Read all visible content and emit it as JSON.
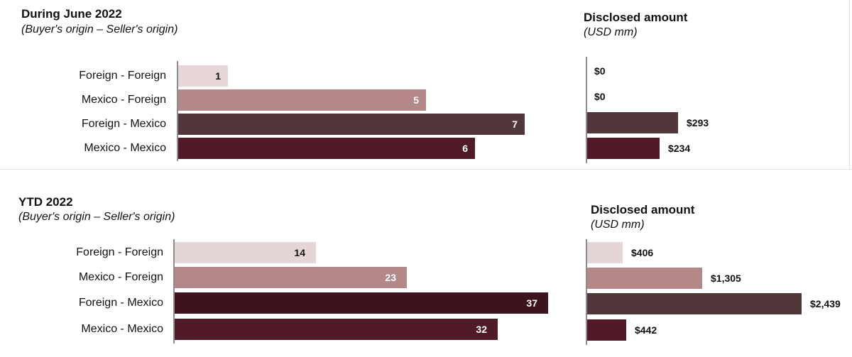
{
  "colors": {
    "foreign_foreign_june": "#e6d6d8",
    "foreign_foreign_ytd": "#e4d5d7",
    "mexico_foreign": "#b48888",
    "foreign_mexico_june": "#51363a",
    "foreign_mexico_ytd": "#3d131d",
    "mexico_mexico": "#511a29"
  },
  "chart_data": [
    {
      "type": "bar",
      "orientation": "horizontal",
      "title": "During June 2022",
      "subtitle": "(Buyer's origin – Seller's origin)",
      "categories": [
        "Foreign - Foreign",
        "Mexico - Foreign",
        "Foreign - Mexico",
        "Mexico - Mexico"
      ],
      "values": [
        1,
        5,
        7,
        6
      ],
      "labels": [
        "1",
        "5",
        "7",
        "6"
      ],
      "xlim": [
        0,
        7
      ]
    },
    {
      "type": "bar",
      "orientation": "horizontal",
      "title": "Disclosed amount",
      "subtitle": "(USD mm)",
      "categories": [
        "Foreign - Foreign",
        "Mexico - Foreign",
        "Foreign - Mexico",
        "Mexico - Mexico"
      ],
      "values": [
        0,
        0,
        293,
        234
      ],
      "labels": [
        "$0",
        "$0",
        "$293",
        "$234"
      ],
      "xlim": [
        0,
        300
      ]
    },
    {
      "type": "bar",
      "orientation": "horizontal",
      "title": "YTD 2022",
      "subtitle": "(Buyer's origin – Seller's origin)",
      "categories": [
        "Foreign - Foreign",
        "Mexico - Foreign",
        "Foreign - Mexico",
        "Mexico - Mexico"
      ],
      "values": [
        14,
        23,
        37,
        32
      ],
      "labels": [
        "14",
        "23",
        "37",
        "32"
      ],
      "xlim": [
        0,
        37
      ]
    },
    {
      "type": "bar",
      "orientation": "horizontal",
      "title": "Disclosed amount",
      "subtitle": "(USD mm)",
      "categories": [
        "Foreign - Foreign",
        "Mexico - Foreign",
        "Foreign - Mexico",
        "Mexico - Mexico"
      ],
      "values": [
        406,
        1305,
        2439,
        442
      ],
      "labels": [
        "$406",
        "$1,305",
        "$2,439",
        "$442"
      ],
      "xlim": [
        0,
        2439
      ]
    }
  ]
}
